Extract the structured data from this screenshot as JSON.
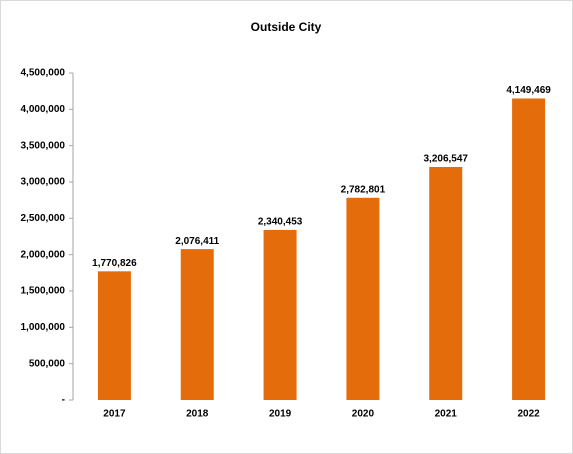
{
  "chart_data": {
    "type": "bar",
    "title": "Outside City",
    "categories": [
      "2017",
      "2018",
      "2019",
      "2020",
      "2021",
      "2022"
    ],
    "values": [
      1770826,
      2076411,
      2340453,
      2782801,
      3206547,
      4149469
    ],
    "value_labels": [
      "1,770,826",
      "2,076,411",
      "2,340,453",
      "2,782,801",
      "3,206,547",
      "4,149,469"
    ],
    "color": "#e46c0a",
    "ylim": [
      0,
      4500000
    ],
    "yticks": [
      {
        "value": 0,
        "label": "-"
      },
      {
        "value": 500000,
        "label": "500,000"
      },
      {
        "value": 1000000,
        "label": "1,000,000"
      },
      {
        "value": 1500000,
        "label": "1,500,000"
      },
      {
        "value": 2000000,
        "label": "2,000,000"
      },
      {
        "value": 2500000,
        "label": "2,500,000"
      },
      {
        "value": 3000000,
        "label": "3,000,000"
      },
      {
        "value": 3500000,
        "label": "3,500,000"
      },
      {
        "value": 4000000,
        "label": "4,000,000"
      },
      {
        "value": 4500000,
        "label": "4,500,000"
      }
    ],
    "grid": false
  }
}
